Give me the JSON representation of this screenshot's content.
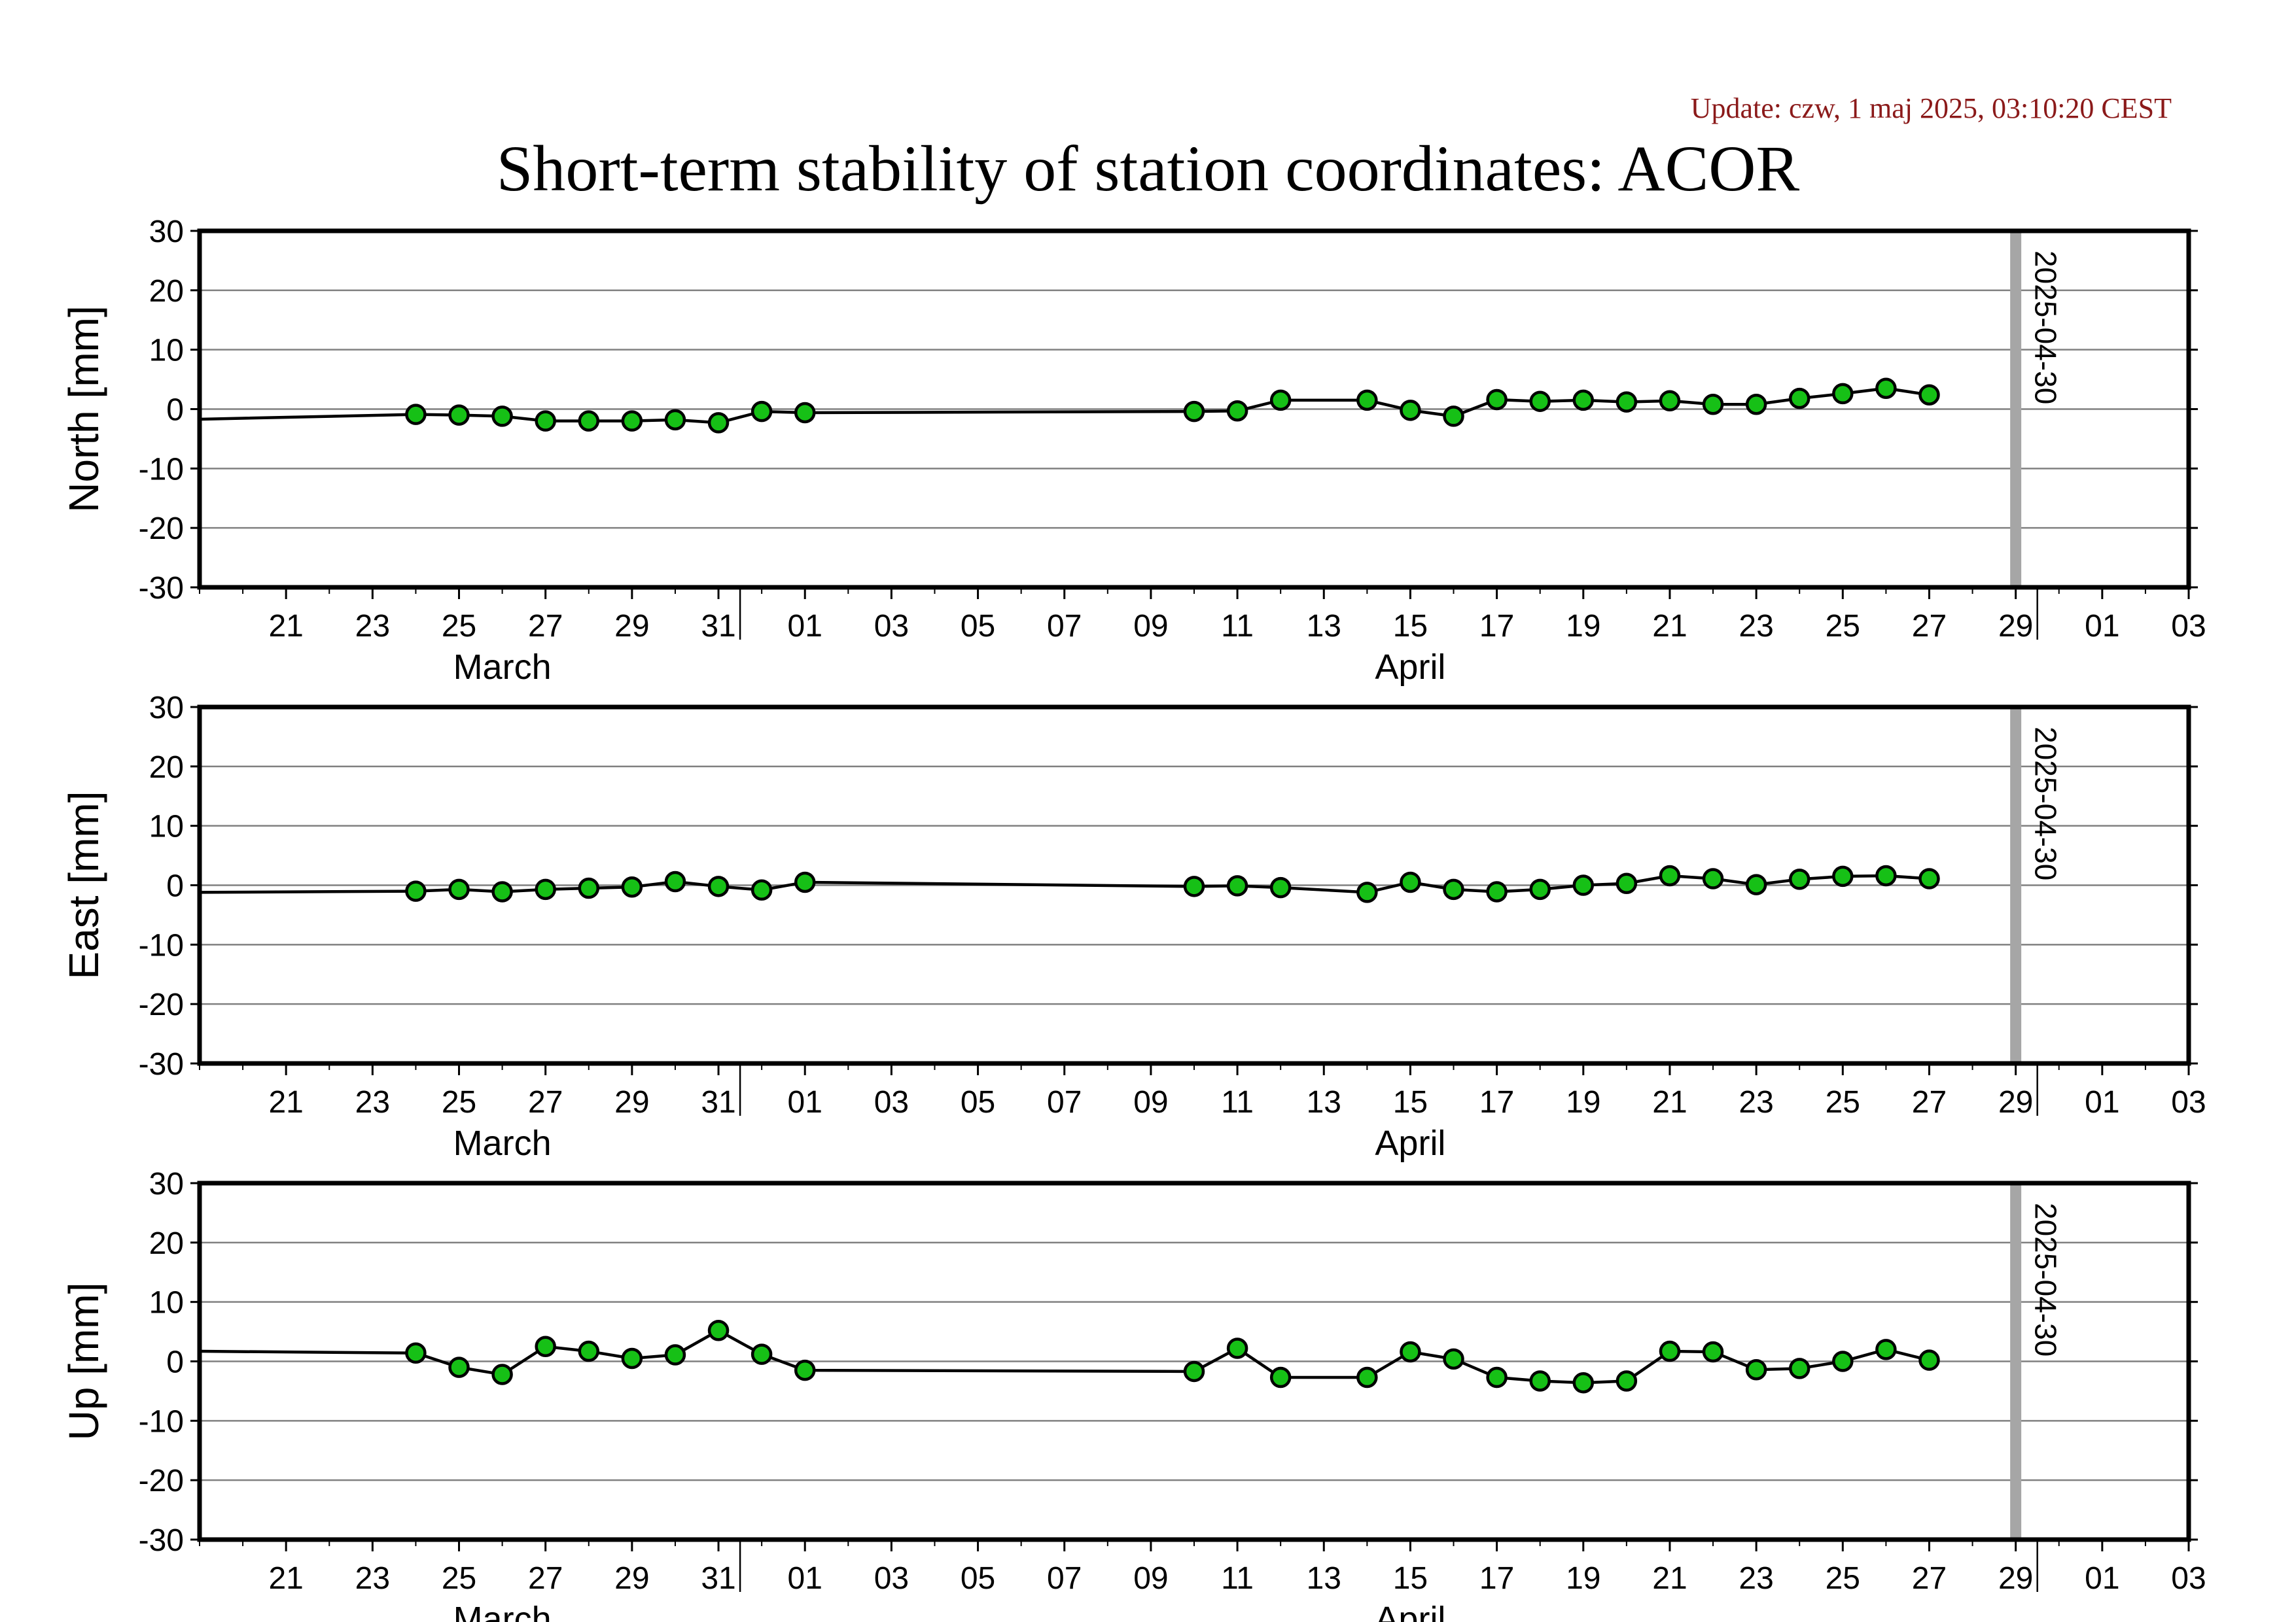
{
  "header": {
    "update": "Update: czw, 1 maj 2025, 03:10:20 CEST",
    "title": "Short-term stability of station coordinates: ACOR"
  },
  "colors": {
    "marker_fill": "#16c016",
    "marker_stroke": "#000000",
    "line": "#000000",
    "grid": "#808080",
    "date_marker": "#a6a6a6"
  },
  "chart_data": [
    {
      "type": "line",
      "ylabel": "North [mm]",
      "ylim": [
        -30,
        30
      ],
      "yticks": [
        30,
        20,
        10,
        0,
        -10,
        -20,
        -30
      ],
      "xlim": [
        "2025-03-19",
        "2025-05-04"
      ],
      "xtick_labels": [
        "21",
        "23",
        "25",
        "27",
        "29",
        "31",
        "01",
        "03",
        "05",
        "07",
        "09",
        "11",
        "13",
        "15",
        "17",
        "19",
        "21",
        "23",
        "25",
        "27",
        "29",
        "01",
        "03"
      ],
      "months": [
        "March",
        "April"
      ],
      "grid": true,
      "date_marker_label": "2025-04-30",
      "line_start": {
        "x": "2025-03-19",
        "y": -1.7
      },
      "points": [
        {
          "x": "2025-03-24",
          "y": -0.9
        },
        {
          "x": "2025-03-25",
          "y": -1.0
        },
        {
          "x": "2025-03-26",
          "y": -1.2
        },
        {
          "x": "2025-03-27",
          "y": -2.0
        },
        {
          "x": "2025-03-28",
          "y": -2.0
        },
        {
          "x": "2025-03-29",
          "y": -2.0
        },
        {
          "x": "2025-03-30",
          "y": -1.8
        },
        {
          "x": "2025-03-31",
          "y": -2.3
        },
        {
          "x": "2025-04-01",
          "y": -0.4
        },
        {
          "x": "2025-04-02",
          "y": -0.6
        },
        {
          "x": "2025-04-11",
          "y": -0.4
        },
        {
          "x": "2025-04-12",
          "y": -0.3
        },
        {
          "x": "2025-04-13",
          "y": 1.5
        },
        {
          "x": "2025-04-15",
          "y": 1.5
        },
        {
          "x": "2025-04-16",
          "y": -0.2
        },
        {
          "x": "2025-04-17",
          "y": -1.2
        },
        {
          "x": "2025-04-18",
          "y": 1.6
        },
        {
          "x": "2025-04-19",
          "y": 1.3
        },
        {
          "x": "2025-04-20",
          "y": 1.5
        },
        {
          "x": "2025-04-21",
          "y": 1.2
        },
        {
          "x": "2025-04-22",
          "y": 1.4
        },
        {
          "x": "2025-04-23",
          "y": 0.8
        },
        {
          "x": "2025-04-24",
          "y": 0.8
        },
        {
          "x": "2025-04-25",
          "y": 1.8
        },
        {
          "x": "2025-04-26",
          "y": 2.6
        },
        {
          "x": "2025-04-27",
          "y": 3.5
        },
        {
          "x": "2025-04-28",
          "y": 2.4
        }
      ]
    },
    {
      "type": "line",
      "ylabel": "East [mm]",
      "ylim": [
        -30,
        30
      ],
      "yticks": [
        30,
        20,
        10,
        0,
        -10,
        -20,
        -30
      ],
      "xlim": [
        "2025-03-19",
        "2025-05-04"
      ],
      "xtick_labels": [
        "21",
        "23",
        "25",
        "27",
        "29",
        "31",
        "01",
        "03",
        "05",
        "07",
        "09",
        "11",
        "13",
        "15",
        "17",
        "19",
        "21",
        "23",
        "25",
        "27",
        "29",
        "01",
        "03"
      ],
      "months": [
        "March",
        "April"
      ],
      "grid": true,
      "date_marker_label": "2025-04-30",
      "line_start": {
        "x": "2025-03-19",
        "y": -1.2
      },
      "points": [
        {
          "x": "2025-03-24",
          "y": -1.0
        },
        {
          "x": "2025-03-25",
          "y": -0.7
        },
        {
          "x": "2025-03-26",
          "y": -1.1
        },
        {
          "x": "2025-03-27",
          "y": -0.7
        },
        {
          "x": "2025-03-28",
          "y": -0.5
        },
        {
          "x": "2025-03-29",
          "y": -0.3
        },
        {
          "x": "2025-03-30",
          "y": 0.6
        },
        {
          "x": "2025-03-31",
          "y": -0.2
        },
        {
          "x": "2025-04-01",
          "y": -0.8
        },
        {
          "x": "2025-04-02",
          "y": 0.5
        },
        {
          "x": "2025-04-11",
          "y": -0.2
        },
        {
          "x": "2025-04-12",
          "y": -0.1
        },
        {
          "x": "2025-04-13",
          "y": -0.4
        },
        {
          "x": "2025-04-15",
          "y": -1.2
        },
        {
          "x": "2025-04-16",
          "y": 0.5
        },
        {
          "x": "2025-04-17",
          "y": -0.7
        },
        {
          "x": "2025-04-18",
          "y": -1.1
        },
        {
          "x": "2025-04-19",
          "y": -0.7
        },
        {
          "x": "2025-04-20",
          "y": 0.0
        },
        {
          "x": "2025-04-21",
          "y": 0.3
        },
        {
          "x": "2025-04-22",
          "y": 1.6
        },
        {
          "x": "2025-04-23",
          "y": 1.1
        },
        {
          "x": "2025-04-24",
          "y": 0.1
        },
        {
          "x": "2025-04-25",
          "y": 1.0
        },
        {
          "x": "2025-04-26",
          "y": 1.5
        },
        {
          "x": "2025-04-27",
          "y": 1.6
        },
        {
          "x": "2025-04-28",
          "y": 1.1
        }
      ]
    },
    {
      "type": "line",
      "ylabel": "Up [mm]",
      "ylim": [
        -30,
        30
      ],
      "yticks": [
        30,
        20,
        10,
        0,
        -10,
        -20,
        -30
      ],
      "xlim": [
        "2025-03-19",
        "2025-05-04"
      ],
      "xtick_labels": [
        "21",
        "23",
        "25",
        "27",
        "29",
        "31",
        "01",
        "03",
        "05",
        "07",
        "09",
        "11",
        "13",
        "15",
        "17",
        "19",
        "21",
        "23",
        "25",
        "27",
        "29",
        "01",
        "03"
      ],
      "months": [
        "March",
        "April"
      ],
      "grid": true,
      "date_marker_label": "2025-04-30",
      "line_start": {
        "x": "2025-03-19",
        "y": 1.7
      },
      "points": [
        {
          "x": "2025-03-24",
          "y": 1.4
        },
        {
          "x": "2025-03-25",
          "y": -1.0
        },
        {
          "x": "2025-03-26",
          "y": -2.2
        },
        {
          "x": "2025-03-27",
          "y": 2.5
        },
        {
          "x": "2025-03-28",
          "y": 1.7
        },
        {
          "x": "2025-03-29",
          "y": 0.5
        },
        {
          "x": "2025-03-30",
          "y": 1.1
        },
        {
          "x": "2025-03-31",
          "y": 5.2
        },
        {
          "x": "2025-04-01",
          "y": 1.2
        },
        {
          "x": "2025-04-02",
          "y": -1.5
        },
        {
          "x": "2025-04-11",
          "y": -1.7
        },
        {
          "x": "2025-04-12",
          "y": 2.2
        },
        {
          "x": "2025-04-13",
          "y": -2.7
        },
        {
          "x": "2025-04-15",
          "y": -2.7
        },
        {
          "x": "2025-04-16",
          "y": 1.6
        },
        {
          "x": "2025-04-17",
          "y": 0.4
        },
        {
          "x": "2025-04-18",
          "y": -2.7
        },
        {
          "x": "2025-04-19",
          "y": -3.3
        },
        {
          "x": "2025-04-20",
          "y": -3.6
        },
        {
          "x": "2025-04-21",
          "y": -3.3
        },
        {
          "x": "2025-04-22",
          "y": 1.7
        },
        {
          "x": "2025-04-23",
          "y": 1.6
        },
        {
          "x": "2025-04-24",
          "y": -1.4
        },
        {
          "x": "2025-04-25",
          "y": -1.2
        },
        {
          "x": "2025-04-26",
          "y": 0.0
        },
        {
          "x": "2025-04-27",
          "y": 2.0
        },
        {
          "x": "2025-04-28",
          "y": 0.2
        }
      ]
    }
  ]
}
